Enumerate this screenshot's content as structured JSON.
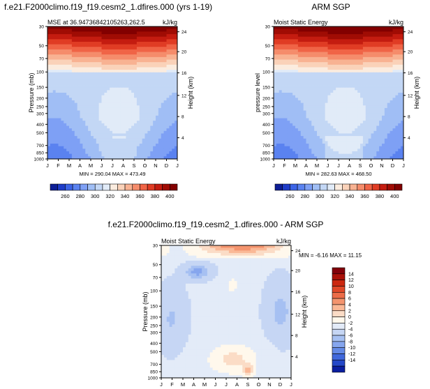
{
  "layout_title": {
    "main": "f.e21.F2000climo.f19_f19.cesm2_1.dfires.000 (yrs 1-19)"
  },
  "panels": [
    {
      "id": "p1",
      "title": "",
      "left": "MSE at 36.94736842105263,262.5",
      "right": "kJ/kg",
      "ylabel": "Pressure (mb)",
      "ylabel2": "Height (km)",
      "minmax": "MIN = 290.04  MAX = 473.49"
    },
    {
      "id": "p2",
      "title": "ARM SGP",
      "left": "Moist Static Energy",
      "right": "kJ/kg",
      "ylabel": "pressure level",
      "ylabel2": "Height (km)",
      "minmax": "MIN = 282.63  MAX = 468.50"
    },
    {
      "id": "p3",
      "title": "f.e21.F2000climo.f19_f19.cesm2_1.dfires.000 - ARM SGP",
      "left": "Moist Static Energy",
      "right": "kJ/kg",
      "ylabel": "Pressure (mb)",
      "ylabel2": "Height (km)",
      "minmax": "MIN = -6.16  MAX = 11.15"
    }
  ],
  "axes": {
    "months": [
      "J",
      "F",
      "M",
      "A",
      "M",
      "J",
      "J",
      "A",
      "S",
      "O",
      "N",
      "D",
      "J"
    ],
    "pressure_ticks": [
      "30",
      "50",
      "70",
      "100",
      "150",
      "200",
      "250",
      "300",
      "400",
      "500",
      "700",
      "850",
      "1000"
    ],
    "height_ticks": [
      "24",
      "20",
      "16",
      "12",
      "8",
      "4"
    ],
    "diff_height_ticks": [
      "24",
      "20",
      "16",
      "12",
      "8",
      "4"
    ]
  },
  "colorbars": {
    "abs_labels": [
      "260",
      "280",
      "300",
      "320",
      "340",
      "360",
      "380",
      "400"
    ],
    "diff_labels": [
      "14",
      "12",
      "10",
      "8",
      "6",
      "4",
      "2",
      "0",
      "-2",
      "-4",
      "-6",
      "-8",
      "-10",
      "-12",
      "-14"
    ]
  },
  "colors": {
    "abs": [
      "#0d1e96",
      "#1e3cc8",
      "#3c64e6",
      "#5a82f0",
      "#7ea0f5",
      "#a0bef5",
      "#c3d7f5",
      "#e1ebf8",
      "#fbecdf",
      "#fad2b9",
      "#f8b292",
      "#f58c6b",
      "#f06446",
      "#e03c24",
      "#c41c10",
      "#a00c04",
      "#820000"
    ],
    "diff": [
      "#82000a",
      "#aa1008",
      "#cc2810",
      "#e04828",
      "#ec6c48",
      "#f4946e",
      "#fab896",
      "#fbdcc6",
      "#fff8ec",
      "#e3ebf8",
      "#c6d6f4",
      "#a6c0f2",
      "#86a6ee",
      "#648ae6",
      "#4068dc",
      "#2448c8",
      "#0a1ea0"
    ]
  },
  "chart_data": [
    {
      "type": "heatmap",
      "title": "MSE at 36.94736842105263,262.5",
      "units": "kJ/kg",
      "x": [
        "J",
        "F",
        "M",
        "A",
        "M",
        "J",
        "J",
        "A",
        "S",
        "O",
        "N",
        "D",
        "J"
      ],
      "ylabel": "Pressure (mb)",
      "y2label": "Height (km)",
      "y_levels": [
        30,
        50,
        70,
        100,
        150,
        200,
        250,
        300,
        400,
        500,
        700,
        850,
        1000
      ],
      "min": 290.04,
      "max": 473.49,
      "colorbar": [
        260,
        280,
        300,
        320,
        340,
        360,
        380,
        400
      ]
    },
    {
      "type": "heatmap",
      "title": "ARM SGP",
      "subtitle": "Moist Static Energy",
      "units": "kJ/kg",
      "x": [
        "J",
        "F",
        "M",
        "A",
        "M",
        "J",
        "J",
        "A",
        "S",
        "O",
        "N",
        "D",
        "J"
      ],
      "ylabel": "pressure level",
      "y2label": "Height (km)",
      "y_levels": [
        30,
        50,
        70,
        100,
        150,
        200,
        250,
        300,
        400,
        500,
        700,
        850,
        1000
      ],
      "min": 282.63,
      "max": 468.5,
      "colorbar": [
        260,
        280,
        300,
        320,
        340,
        360,
        380,
        400
      ]
    },
    {
      "type": "heatmap",
      "title": "f.e21.F2000climo.f19_f19.cesm2_1.dfires.000 - ARM SGP",
      "subtitle": "Moist Static Energy",
      "units": "kJ/kg",
      "x": [
        "J",
        "F",
        "M",
        "A",
        "M",
        "J",
        "J",
        "A",
        "S",
        "O",
        "N",
        "D",
        "J"
      ],
      "ylabel": "Pressure (mb)",
      "y2label": "Height (km)",
      "y_levels": [
        30,
        50,
        70,
        100,
        150,
        200,
        250,
        300,
        400,
        500,
        700,
        850,
        1000
      ],
      "min": -6.16,
      "max": 11.15,
      "colorbar": [
        14,
        12,
        10,
        8,
        6,
        4,
        2,
        0,
        -2,
        -4,
        -6,
        -8,
        -10,
        -12,
        -14
      ]
    }
  ]
}
